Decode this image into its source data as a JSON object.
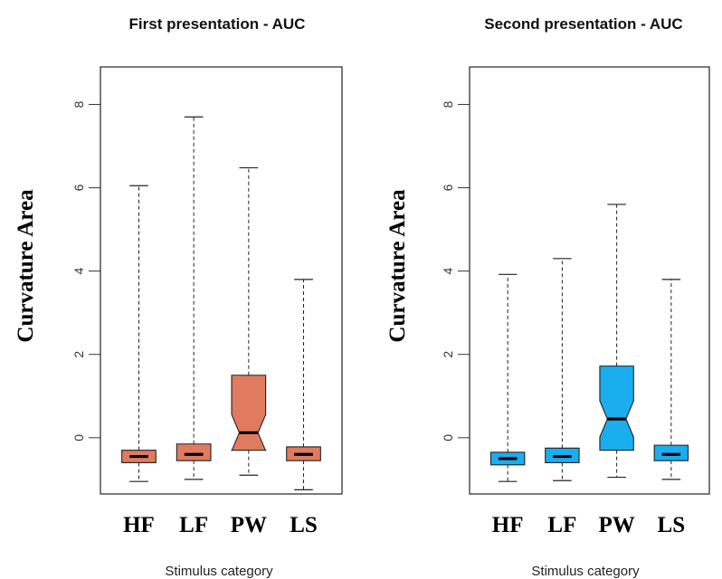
{
  "chart_data": [
    {
      "type": "boxplot",
      "title": "First presentation - AUC",
      "xlabel": "Stimulus category",
      "ylabel": "Curvature Area",
      "color": "#e07b5f",
      "ylim": [
        -1.35,
        8.9
      ],
      "yticks": [
        0,
        2,
        4,
        6,
        8
      ],
      "categories": [
        "HF",
        "LF",
        "PW",
        "LS"
      ],
      "boxes": [
        {
          "category": "HF",
          "min": -1.05,
          "q1": -0.6,
          "median": -0.45,
          "q3": -0.3,
          "max": 6.05
        },
        {
          "category": "LF",
          "min": -1.0,
          "q1": -0.55,
          "median": -0.4,
          "q3": -0.15,
          "max": 7.7
        },
        {
          "category": "PW",
          "min": -0.9,
          "q1": -0.3,
          "median": 0.12,
          "q3": 1.5,
          "max": 6.48
        },
        {
          "category": "LS",
          "min": -1.25,
          "q1": -0.55,
          "median": -0.4,
          "q3": -0.22,
          "max": 3.8
        }
      ]
    },
    {
      "type": "boxplot",
      "title": "Second presentation - AUC",
      "xlabel": "Stimulus category",
      "ylabel": "Curvature Area",
      "color": "#1aaeee",
      "ylim": [
        -1.35,
        8.9
      ],
      "yticks": [
        0,
        2,
        4,
        6,
        8
      ],
      "categories": [
        "HF",
        "LF",
        "PW",
        "LS"
      ],
      "boxes": [
        {
          "category": "HF",
          "min": -1.05,
          "q1": -0.65,
          "median": -0.5,
          "q3": -0.35,
          "max": 3.92
        },
        {
          "category": "LF",
          "min": -1.03,
          "q1": -0.6,
          "median": -0.45,
          "q3": -0.25,
          "max": 4.3
        },
        {
          "category": "PW",
          "min": -0.95,
          "q1": -0.3,
          "median": 0.45,
          "q3": 1.72,
          "max": 5.6
        },
        {
          "category": "LS",
          "min": -1.0,
          "q1": -0.55,
          "median": -0.4,
          "q3": -0.18,
          "max": 3.8
        }
      ]
    }
  ]
}
